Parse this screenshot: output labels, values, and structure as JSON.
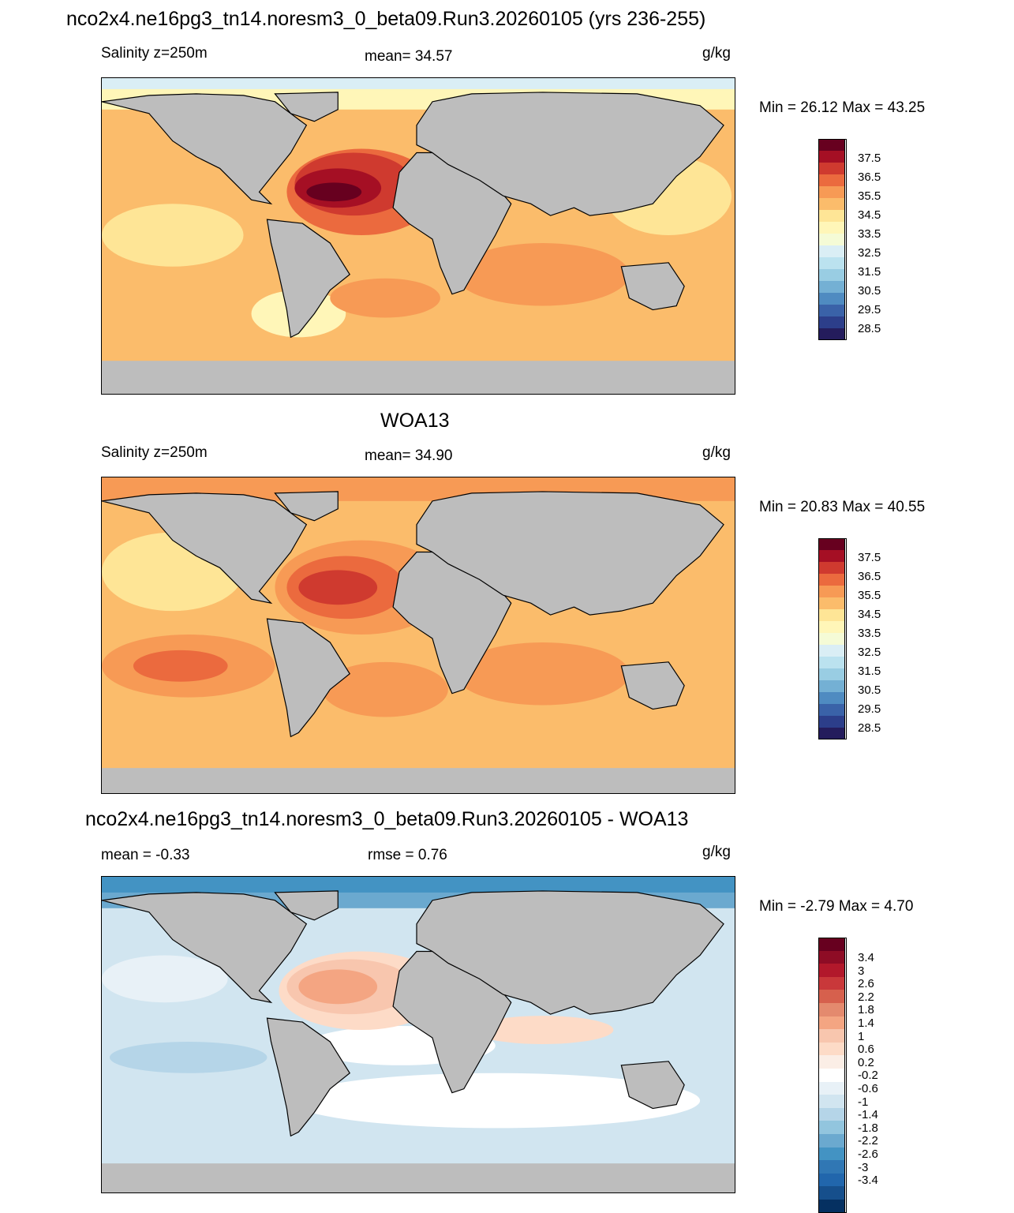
{
  "header": {
    "title": "nco2x4.ne16pg3_tn14.noresm3_0_beta09.Run3.20260105 (yrs 236-255)"
  },
  "panels": [
    {
      "panel_title": "",
      "left_label": "Salinity z=250m",
      "center_label": "mean=  34.57",
      "units": "g/kg",
      "minmax": "Min =  26.12 Max =  43.25",
      "colorbar": {
        "labels": [
          "37.5",
          "36.5",
          "35.5",
          "34.5",
          "33.5",
          "32.5",
          "31.5",
          "30.5",
          "29.5",
          "28.5"
        ],
        "colors": [
          "#67001f",
          "#a50f24",
          "#cf3a2f",
          "#eb6a3e",
          "#f79a55",
          "#fbbc6b",
          "#fee596",
          "#fff6b8",
          "#f5fbd6",
          "#daeef5",
          "#bbe2ef",
          "#99cde3",
          "#74b0d4",
          "#4f8bc1",
          "#3a62a8",
          "#2c3e8a",
          "#241c5c"
        ]
      }
    },
    {
      "panel_title": "WOA13",
      "left_label": "Salinity z=250m",
      "center_label": "mean=  34.90",
      "units": "g/kg",
      "minmax": "Min =  20.83 Max =  40.55",
      "colorbar": {
        "labels": [
          "37.5",
          "36.5",
          "35.5",
          "34.5",
          "33.5",
          "32.5",
          "31.5",
          "30.5",
          "29.5",
          "28.5"
        ],
        "colors": [
          "#67001f",
          "#a50f24",
          "#cf3a2f",
          "#eb6a3e",
          "#f79a55",
          "#fbbc6b",
          "#fee596",
          "#fff6b8",
          "#f5fbd6",
          "#daeef5",
          "#bbe2ef",
          "#99cde3",
          "#74b0d4",
          "#4f8bc1",
          "#3a62a8",
          "#2c3e8a",
          "#241c5c"
        ]
      }
    },
    {
      "panel_title": "nco2x4.ne16pg3_tn14.noresm3_0_beta09.Run3.20260105 - WOA13",
      "left_label": "mean =  -0.33",
      "center_label": "rmse =   0.76",
      "units": "g/kg",
      "minmax": "Min =  -2.79 Max =   4.70",
      "colorbar": {
        "labels": [
          "3.4",
          "3",
          "2.6",
          "2.2",
          "1.8",
          "1.4",
          "1",
          "0.6",
          "0.2",
          "-0.2",
          "-0.6",
          "-1",
          "-1.4",
          "-1.8",
          "-2.2",
          "-2.6",
          "-3",
          "-3.4"
        ],
        "colors": [
          "#67001f",
          "#8e0c25",
          "#b2182b",
          "#c9383a",
          "#d6604d",
          "#e48a6e",
          "#f4a582",
          "#f8c6ae",
          "#fddbc7",
          "#fbeee6",
          "#ffffff",
          "#e8f1f7",
          "#d1e5f0",
          "#b5d5e8",
          "#92c5de",
          "#6ba9cf",
          "#4393c3",
          "#3077b4",
          "#2166ac",
          "#164f8c",
          "#053061"
        ]
      }
    }
  ],
  "colors": {
    "land": "#bdbdbd",
    "coast": "#000000",
    "background": "#ffffff"
  }
}
